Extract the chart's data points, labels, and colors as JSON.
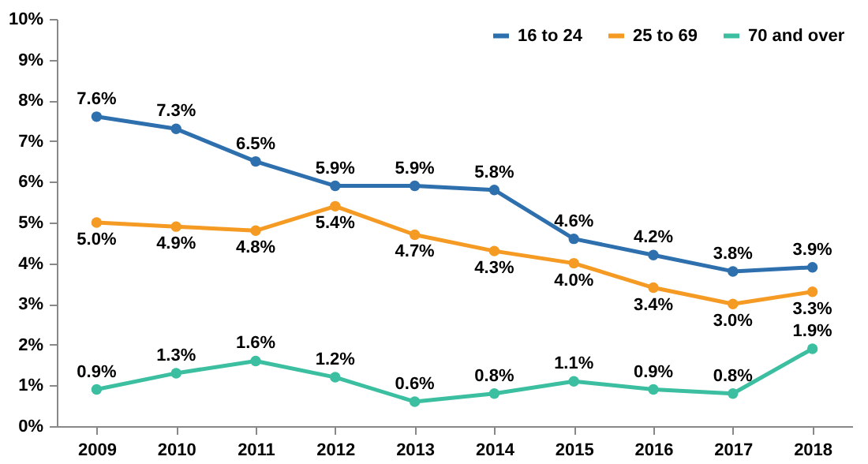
{
  "chart_data": {
    "type": "line",
    "categories": [
      "2009",
      "2010",
      "2011",
      "2012",
      "2013",
      "2014",
      "2015",
      "2016",
      "2017",
      "2018"
    ],
    "series": [
      {
        "name": "16 to 24",
        "color": "#2e6fad",
        "values": [
          7.6,
          7.3,
          6.5,
          5.9,
          5.9,
          5.8,
          4.6,
          4.2,
          3.8,
          3.9
        ],
        "value_labels": [
          "7.6%",
          "7.3%",
          "6.5%",
          "5.9%",
          "5.9%",
          "5.8%",
          "4.6%",
          "4.2%",
          "3.8%",
          "3.9%"
        ]
      },
      {
        "name": "25 to 69",
        "color": "#f59a23",
        "values": [
          5.0,
          4.9,
          4.8,
          5.4,
          4.7,
          4.3,
          4.0,
          3.4,
          3.0,
          3.3
        ],
        "value_labels": [
          "5.0%",
          "4.9%",
          "4.8%",
          "5.4%",
          "4.7%",
          "4.3%",
          "4.0%",
          "3.4%",
          "3.0%",
          "3.3%"
        ]
      },
      {
        "name": "70 and over",
        "color": "#3bbfa0",
        "values": [
          0.9,
          1.3,
          1.6,
          1.2,
          0.6,
          0.8,
          1.1,
          0.9,
          0.8,
          1.9
        ],
        "value_labels": [
          "0.9%",
          "1.3%",
          "1.6%",
          "1.2%",
          "0.6%",
          "0.8%",
          "1.1%",
          "0.9%",
          "0.8%",
          "1.9%"
        ]
      }
    ],
    "ylim": [
      0,
      10
    ],
    "yticks": [
      {
        "value": 0,
        "label": "0%"
      },
      {
        "value": 1,
        "label": "1%"
      },
      {
        "value": 2,
        "label": "2%"
      },
      {
        "value": 3,
        "label": "3%"
      },
      {
        "value": 4,
        "label": "4%"
      },
      {
        "value": 5,
        "label": "5%"
      },
      {
        "value": 6,
        "label": "6%"
      },
      {
        "value": 7,
        "label": "7%"
      },
      {
        "value": 8,
        "label": "8%"
      },
      {
        "value": 9,
        "label": "9%"
      },
      {
        "value": 10,
        "label": "10%"
      }
    ],
    "grid": false,
    "legend": "top right",
    "marker": "circle",
    "line_style": "solid"
  }
}
